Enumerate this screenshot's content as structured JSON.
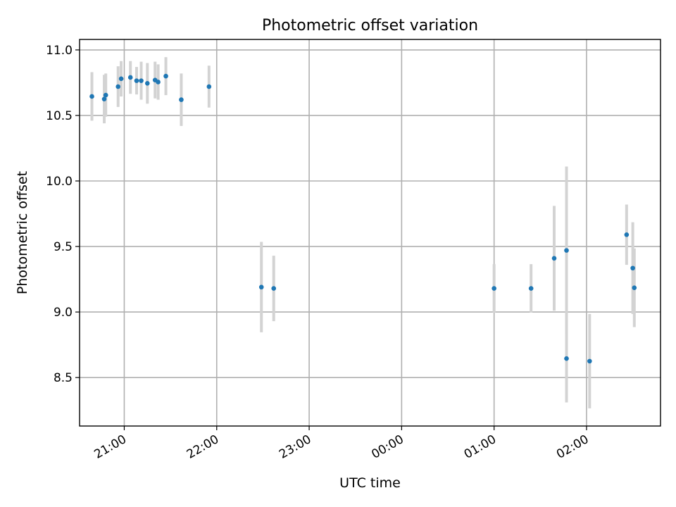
{
  "chart_data": {
    "type": "scatter",
    "title": "Photometric offset variation",
    "xlabel": "UTC time",
    "ylabel": "Photometric offset",
    "x_axis_type": "time",
    "x_range": [
      "20:31",
      "02:48"
    ],
    "ylim": [
      8.13,
      11.08
    ],
    "x_ticks": [
      "21:00",
      "22:00",
      "23:00",
      "00:00",
      "01:00",
      "02:00"
    ],
    "y_ticks": [
      8.5,
      9.0,
      9.5,
      10.0,
      10.5,
      11.0
    ],
    "x_tick_labels": [
      "21:00",
      "22:00",
      "23:00",
      "00:00",
      "01:00",
      "02:00"
    ],
    "y_tick_labels": [
      "8.5",
      "9.0",
      "9.5",
      "10.0",
      "10.5",
      "11.0"
    ],
    "grid": true,
    "colors": {
      "points": "#1f77b4",
      "errorbars": "#d3d3d3",
      "grid": "#b0b0b0"
    },
    "series": [
      {
        "points": [
          {
            "t": "20:39",
            "y": 10.645,
            "err": 0.185
          },
          {
            "t": "20:47",
            "y": 10.625,
            "err": 0.185
          },
          {
            "t": "20:48",
            "y": 10.655,
            "err": 0.165
          },
          {
            "t": "20:56",
            "y": 10.72,
            "err": 0.155
          },
          {
            "t": "20:58",
            "y": 10.78,
            "err": 0.135
          },
          {
            "t": "21:04",
            "y": 10.79,
            "err": 0.125
          },
          {
            "t": "21:08",
            "y": 10.765,
            "err": 0.105
          },
          {
            "t": "21:11",
            "y": 10.765,
            "err": 0.145
          },
          {
            "t": "21:15",
            "y": 10.745,
            "err": 0.155
          },
          {
            "t": "21:20",
            "y": 10.77,
            "err": 0.14
          },
          {
            "t": "21:22",
            "y": 10.755,
            "err": 0.135
          },
          {
            "t": "21:27",
            "y": 10.8,
            "err": 0.145
          },
          {
            "t": "21:37",
            "y": 10.62,
            "err": 0.2
          },
          {
            "t": "21:55",
            "y": 10.72,
            "err": 0.16
          },
          {
            "t": "22:29",
            "y": 9.19,
            "err": 0.345
          },
          {
            "t": "22:37",
            "y": 9.18,
            "err": 0.25
          },
          {
            "t": "01:00",
            "y": 9.18,
            "err": 0.185
          },
          {
            "t": "01:24",
            "y": 9.18,
            "err": 0.185
          },
          {
            "t": "01:39",
            "y": 9.41,
            "err": 0.4
          },
          {
            "t": "01:47",
            "y": 9.47,
            "err": 0.64
          },
          {
            "t": "01:47",
            "y": 8.645,
            "err": 0.335
          },
          {
            "t": "02:02",
            "y": 8.625,
            "err": 0.36
          },
          {
            "t": "02:26",
            "y": 9.59,
            "err": 0.23
          },
          {
            "t": "02:30",
            "y": 9.335,
            "err": 0.35
          },
          {
            "t": "02:31",
            "y": 9.185,
            "err": 0.3
          }
        ]
      }
    ]
  }
}
